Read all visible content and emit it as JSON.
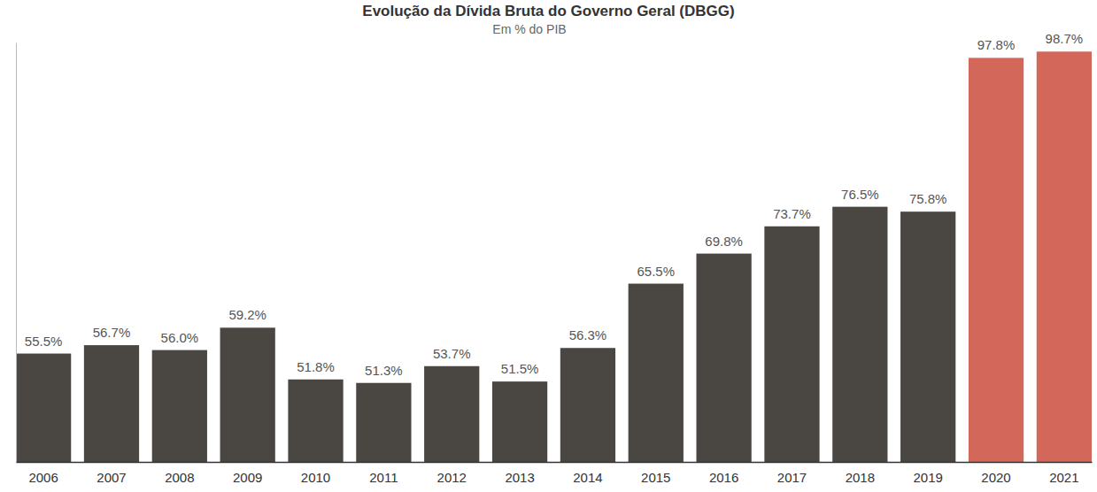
{
  "chart_data": {
    "type": "bar",
    "title": "Evolução da Dívida Bruta do Governo Geral (DBGG)",
    "subtitle": "Em % do PIB",
    "categories": [
      "2006",
      "2007",
      "2008",
      "2009",
      "2010",
      "2011",
      "2012",
      "2013",
      "2014",
      "2015",
      "2016",
      "2017",
      "2018",
      "2019",
      "2020",
      "2021"
    ],
    "values": [
      55.5,
      56.7,
      56.0,
      59.2,
      51.8,
      51.3,
      53.7,
      51.5,
      56.3,
      65.5,
      69.8,
      73.7,
      76.5,
      75.8,
      97.8,
      98.7
    ],
    "value_labels": [
      "55.5%",
      "56.7%",
      "56.0%",
      "59.2%",
      "51.8%",
      "51.3%",
      "53.7%",
      "51.5%",
      "56.3%",
      "65.5%",
      "69.8%",
      "73.7%",
      "76.5%",
      "75.8%",
      "97.8%",
      "98.7%"
    ],
    "colors": [
      "#4a4642",
      "#4a4642",
      "#4a4642",
      "#4a4642",
      "#4a4642",
      "#4a4642",
      "#4a4642",
      "#4a4642",
      "#4a4642",
      "#4a4642",
      "#4a4642",
      "#4a4642",
      "#4a4642",
      "#4a4642",
      "#d3685a",
      "#d3685a"
    ],
    "ylim": [
      40,
      100
    ],
    "grid": false,
    "data_labels": true,
    "tick_labels": "x"
  }
}
